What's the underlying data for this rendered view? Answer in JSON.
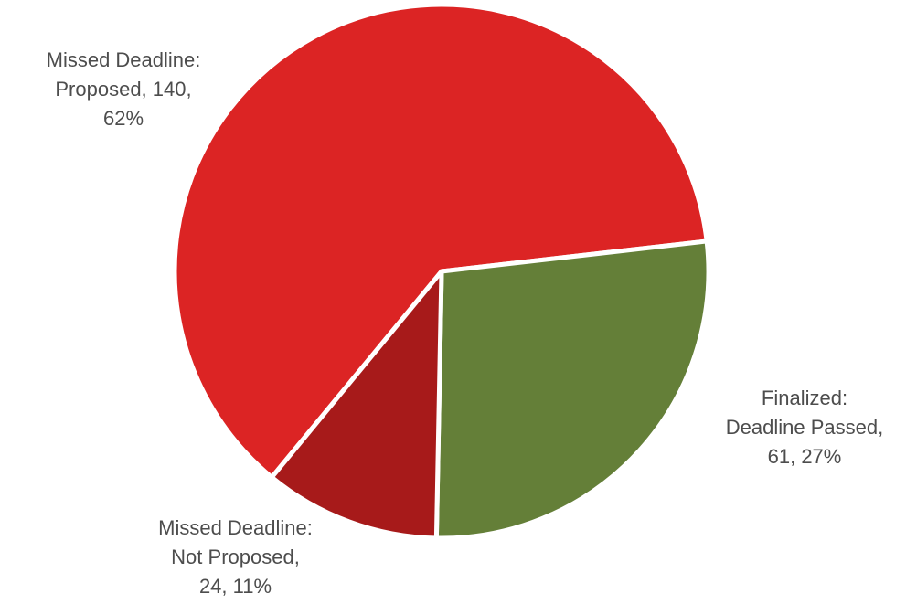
{
  "chart_data": {
    "type": "pie",
    "slices": [
      {
        "name": "Missed Deadline: Proposed",
        "value": 140,
        "percent": "62%",
        "color": "#dc2424",
        "label_lines": [
          "Missed Deadline:",
          "Proposed, 140,",
          "62%"
        ]
      },
      {
        "name": "Finalized: Deadline Passed",
        "value": 61,
        "percent": "27%",
        "color": "#647f38",
        "label_lines": [
          "Finalized:",
          "Deadline Passed,",
          "61, 27%"
        ]
      },
      {
        "name": "Missed Deadline: Not Proposed",
        "value": 24,
        "percent": "11%",
        "color": "#a71a1a",
        "label_lines": [
          "Missed Deadline:",
          "Not Proposed,",
          "24, 11%"
        ]
      }
    ],
    "legend": "none"
  }
}
